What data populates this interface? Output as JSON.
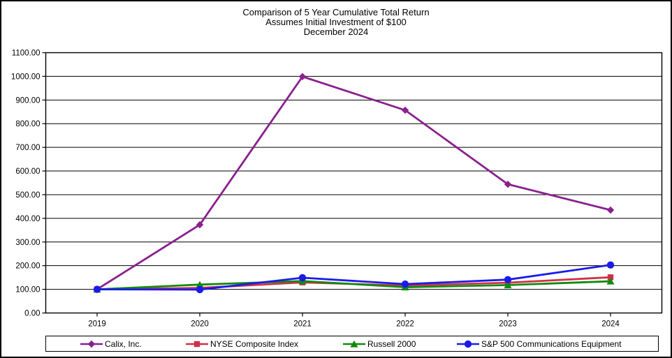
{
  "chart_data": {
    "type": "line",
    "title": "Comparison of 5 Year Cumulative Total Return",
    "subtitle": "Assumes Initial Investment of $100",
    "date_line": "December 2024",
    "categories": [
      "2019",
      "2020",
      "2021",
      "2022",
      "2023",
      "2024"
    ],
    "y_ticks": [
      "0.00",
      "100.00",
      "200.00",
      "300.00",
      "400.00",
      "500.00",
      "600.00",
      "700.00",
      "800.00",
      "900.00",
      "1000.00",
      "1100.00"
    ],
    "ylim": [
      0,
      1100
    ],
    "grid": "horizontal",
    "legend_position": "bottom",
    "axis_color": "#000000",
    "background_color": "#ffffff",
    "series": [
      {
        "name": "Calix, Inc.",
        "color": "#8B208E",
        "marker": "diamond",
        "values": [
          100,
          373,
          999,
          857,
          544,
          435
        ]
      },
      {
        "name": "NYSE Composite Index",
        "color": "#CF3148",
        "marker": "square",
        "values": [
          100,
          106,
          129,
          116,
          128,
          151
        ]
      },
      {
        "name": "Russell 2000",
        "color": "#118A11",
        "marker": "triangle",
        "values": [
          100,
          120,
          135,
          109,
          118,
          134
        ]
      },
      {
        "name": "S&P 500 Communications Equipment",
        "color": "#1B1BE8",
        "marker": "circle",
        "values": [
          100,
          99,
          149,
          122,
          141,
          203
        ]
      }
    ]
  }
}
